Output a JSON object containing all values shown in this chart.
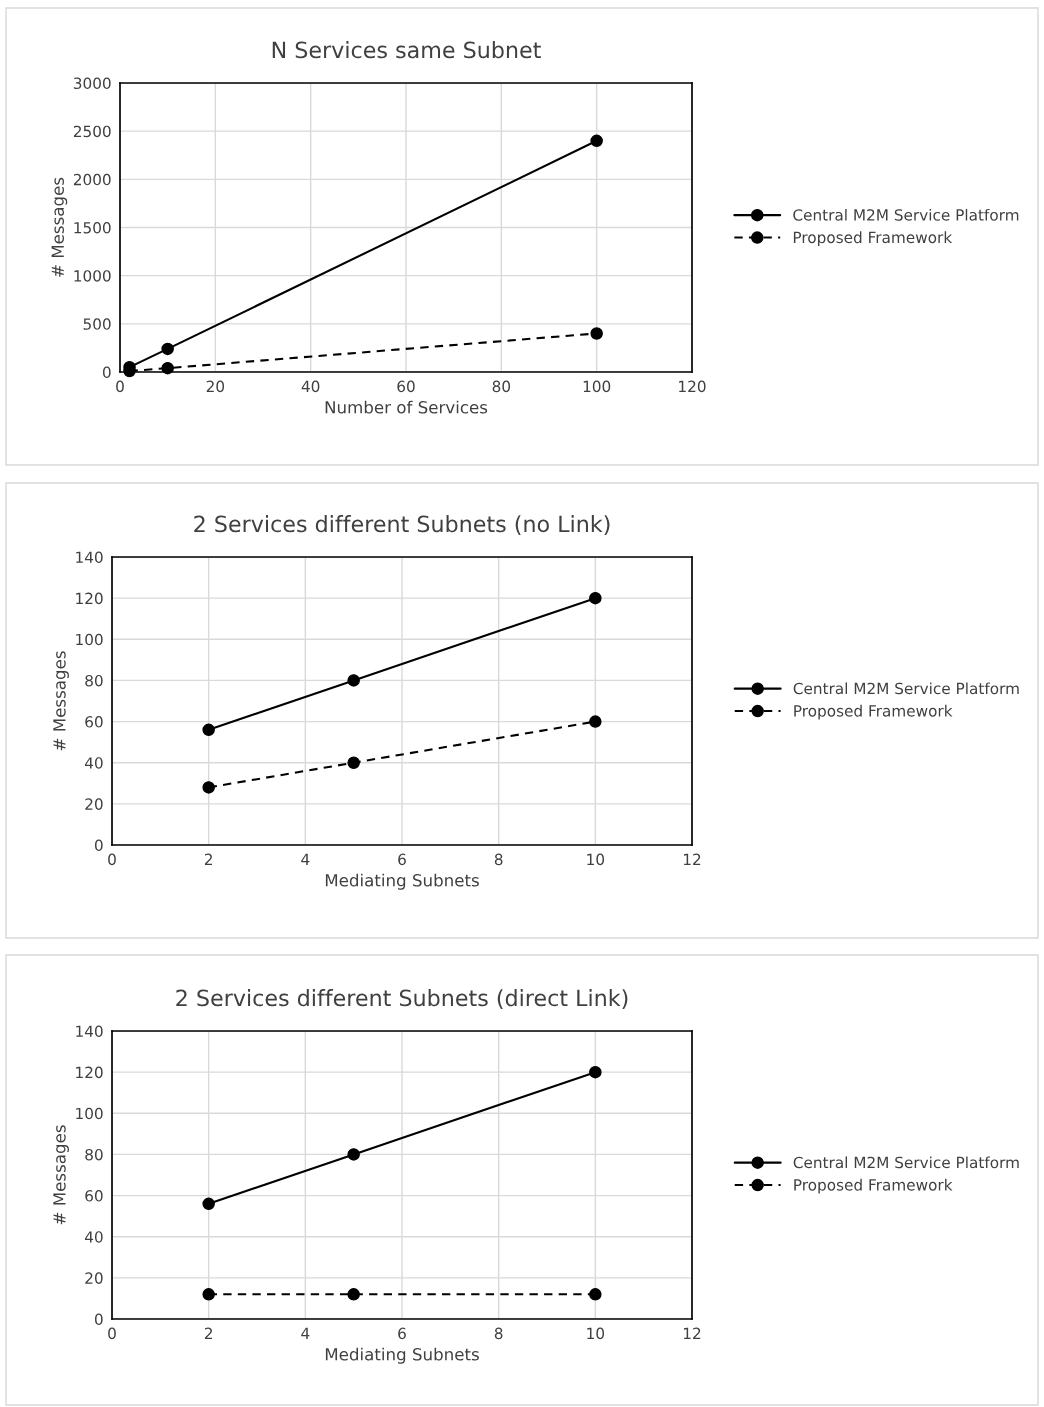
{
  "chart_data": [
    {
      "type": "line",
      "title": "N Services same Subnet",
      "xlabel": "Number of Services",
      "ylabel": "# Messages",
      "x": [
        2,
        10,
        100
      ],
      "xlim": [
        0,
        120
      ],
      "xticks": [
        0,
        20,
        40,
        60,
        80,
        100,
        120
      ],
      "ylim": [
        0,
        3000
      ],
      "yticks": [
        0,
        500,
        1000,
        1500,
        2000,
        2500,
        3000
      ],
      "grid": true,
      "legend": "right",
      "marker": "circle",
      "series": [
        {
          "name": "Central M2M Service Platform",
          "color": "#000000",
          "line_style": "solid",
          "values": [
            50,
            240,
            2400
          ]
        },
        {
          "name": "Proposed Framework",
          "color": "#000000",
          "line_style": "dashed",
          "values": [
            10,
            40,
            400
          ]
        }
      ]
    },
    {
      "type": "line",
      "title": "2 Services different Subnets (no Link)",
      "xlabel": "Mediating Subnets",
      "ylabel": "# Messages",
      "x": [
        2,
        5,
        10
      ],
      "xlim": [
        0,
        12
      ],
      "xticks": [
        0,
        2,
        4,
        6,
        8,
        10,
        12
      ],
      "ylim": [
        0,
        140
      ],
      "yticks": [
        0,
        20,
        40,
        60,
        80,
        100,
        120,
        140
      ],
      "grid": true,
      "legend": "right",
      "marker": "circle",
      "series": [
        {
          "name": "Central M2M Service Platform",
          "color": "#000000",
          "line_style": "solid",
          "values": [
            56,
            80,
            120
          ]
        },
        {
          "name": "Proposed Framework",
          "color": "#000000",
          "line_style": "dashed",
          "values": [
            28,
            40,
            60
          ]
        }
      ]
    },
    {
      "type": "line",
      "title": "2 Services different Subnets (direct Link)",
      "xlabel": "Mediating Subnets",
      "ylabel": "# Messages",
      "x": [
        2,
        5,
        10
      ],
      "xlim": [
        0,
        12
      ],
      "xticks": [
        0,
        2,
        4,
        6,
        8,
        10,
        12
      ],
      "ylim": [
        0,
        140
      ],
      "yticks": [
        0,
        20,
        40,
        60,
        80,
        100,
        120,
        140
      ],
      "grid": true,
      "legend": "right",
      "marker": "circle",
      "series": [
        {
          "name": "Central M2M Service Platform",
          "color": "#000000",
          "line_style": "solid",
          "values": [
            56,
            80,
            120
          ]
        },
        {
          "name": "Proposed Framework",
          "color": "#000000",
          "line_style": "dashed",
          "values": [
            12,
            12,
            12
          ]
        }
      ]
    }
  ]
}
